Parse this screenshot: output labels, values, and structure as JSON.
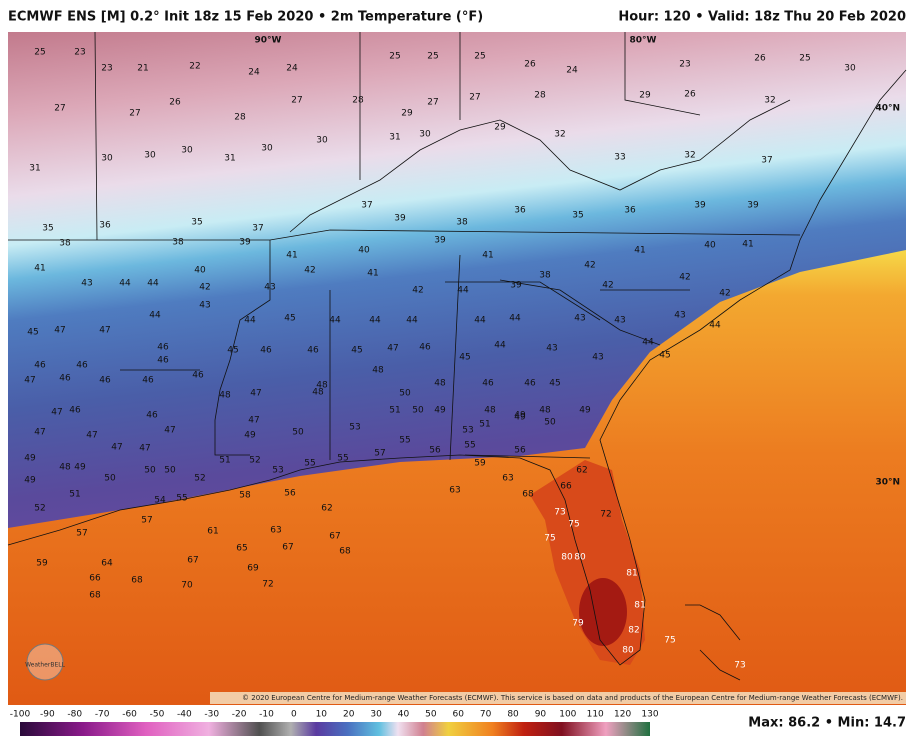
{
  "header": {
    "title": "ECMWF ENS [M] 0.2° Init 18z 15 Feb 2020 • 2m Temperature (°F)",
    "valid": "Hour: 120 • Valid: 18z Thu 20 Feb 2020"
  },
  "map": {
    "grid_labels": [
      "90°W",
      "80°W",
      "40°N",
      "30°N"
    ],
    "stations": [
      25,
      23,
      23,
      21,
      22,
      24,
      24,
      25,
      25,
      25,
      26,
      24,
      23,
      26,
      25,
      30,
      27,
      27,
      26,
      28,
      27,
      28,
      29,
      27,
      27,
      28,
      29,
      26,
      32,
      31,
      30,
      30,
      30,
      31,
      30,
      30,
      31,
      30,
      29,
      32,
      33,
      32,
      37,
      35,
      36,
      35,
      37,
      37,
      39,
      38,
      36,
      35,
      36,
      39,
      39,
      38,
      38,
      39,
      41,
      40,
      39,
      41,
      38,
      42,
      41,
      40,
      41,
      41,
      43,
      44,
      44,
      40,
      42,
      43,
      42,
      41,
      42,
      44,
      39,
      42,
      42,
      42,
      45,
      47,
      47,
      44,
      43,
      44,
      45,
      44,
      44,
      44,
      44,
      44,
      43,
      43,
      43,
      44,
      46,
      46,
      46,
      46,
      45,
      46,
      46,
      45,
      47,
      46,
      45,
      44,
      43,
      43,
      44,
      45,
      47,
      46,
      46,
      46,
      46,
      47,
      48,
      48,
      48,
      46,
      46,
      45,
      47,
      46,
      46,
      48,
      47,
      48,
      50,
      49,
      48,
      49,
      48,
      49,
      47,
      47,
      47,
      47,
      47,
      49,
      50,
      53,
      51,
      50,
      53,
      51,
      49,
      50,
      49,
      48,
      49,
      50,
      50,
      50,
      52,
      51,
      52,
      53,
      55,
      55,
      57,
      55,
      56,
      55,
      56,
      59,
      62,
      49,
      51,
      54,
      55,
      58,
      56,
      62,
      63,
      63,
      68,
      66,
      52,
      57,
      57,
      61,
      63,
      67,
      67,
      68,
      65,
      69,
      73,
      75,
      72,
      59,
      64,
      66,
      68,
      68,
      70,
      67,
      72,
      75,
      80,
      80,
      81,
      81,
      82,
      80,
      79,
      75,
      73
    ]
  },
  "footer": {
    "credit": "© 2020 European Centre for Medium-range Weather Forecasts (ECMWF). This service is based on data and products of the European Centre for Medium-range Weather Forecasts (ECMWF).",
    "scale": [
      -100,
      -90,
      -80,
      -70,
      -60,
      -50,
      -40,
      -30,
      -20,
      -10,
      0,
      10,
      20,
      30,
      40,
      50,
      60,
      70,
      80,
      90,
      100,
      110,
      120,
      130
    ],
    "stats": "Max: 86.2 • Min: 14.7",
    "logo": "WeatherBELL"
  }
}
